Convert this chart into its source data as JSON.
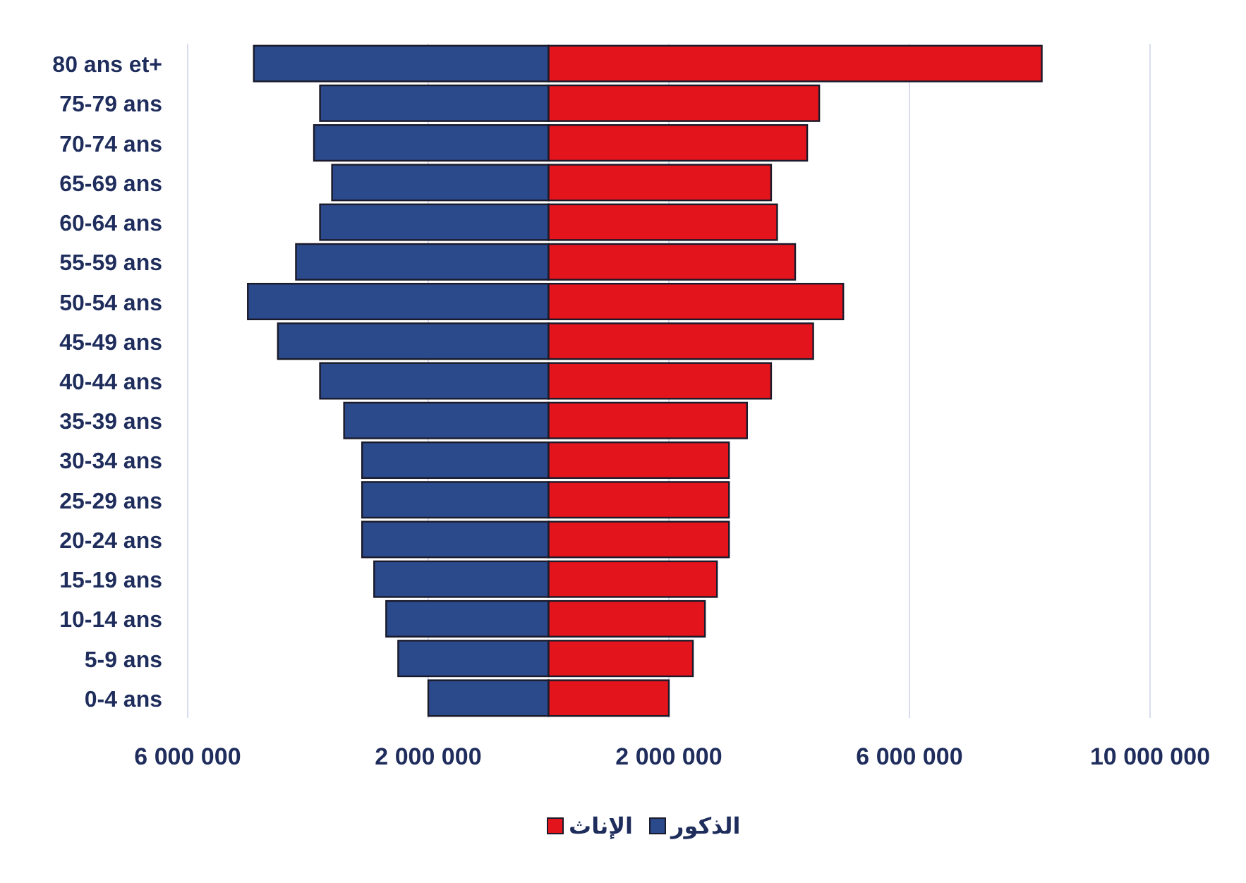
{
  "chart_data": {
    "type": "bar",
    "orientation": "horizontal",
    "stacked": true,
    "categories": [
      "80 ans et+",
      "75-79 ans",
      "70-74 ans",
      "65-69 ans",
      "60-64 ans",
      "55-59 ans",
      "50-54 ans",
      "45-49 ans",
      "40-44 ans",
      "35-39 ans",
      "30-34 ans",
      "25-29 ans",
      "20-24 ans",
      "15-19 ans",
      "10-14 ans",
      "5-9 ans",
      "0-4 ans"
    ],
    "series": [
      {
        "name": "الذكور",
        "color": "#2b4a8c",
        "values": [
          -4900000,
          -3800000,
          -3900000,
          -3600000,
          -3800000,
          -4200000,
          -5000000,
          -4500000,
          -3800000,
          -3400000,
          -3100000,
          -3100000,
          -3100000,
          -2900000,
          -2700000,
          -2500000,
          -2000000
        ]
      },
      {
        "name": "الإناث",
        "color": "#e3141c",
        "values": [
          8200000,
          4500000,
          4300000,
          3700000,
          3800000,
          4100000,
          4900000,
          4400000,
          3700000,
          3300000,
          3000000,
          3000000,
          3000000,
          2800000,
          2600000,
          2400000,
          2000000
        ]
      }
    ],
    "xlim": [
      -6000000,
      10000000
    ],
    "xticks": [
      {
        "value": -6000000,
        "label": "6 000 000"
      },
      {
        "value": -2000000,
        "label": "2 000 000"
      },
      {
        "value": 2000000,
        "label": "2 000 000"
      },
      {
        "value": 6000000,
        "label": "6 000 000"
      },
      {
        "value": 10000000,
        "label": "10 000 000"
      }
    ],
    "grid": "x",
    "legend": "bottom"
  }
}
